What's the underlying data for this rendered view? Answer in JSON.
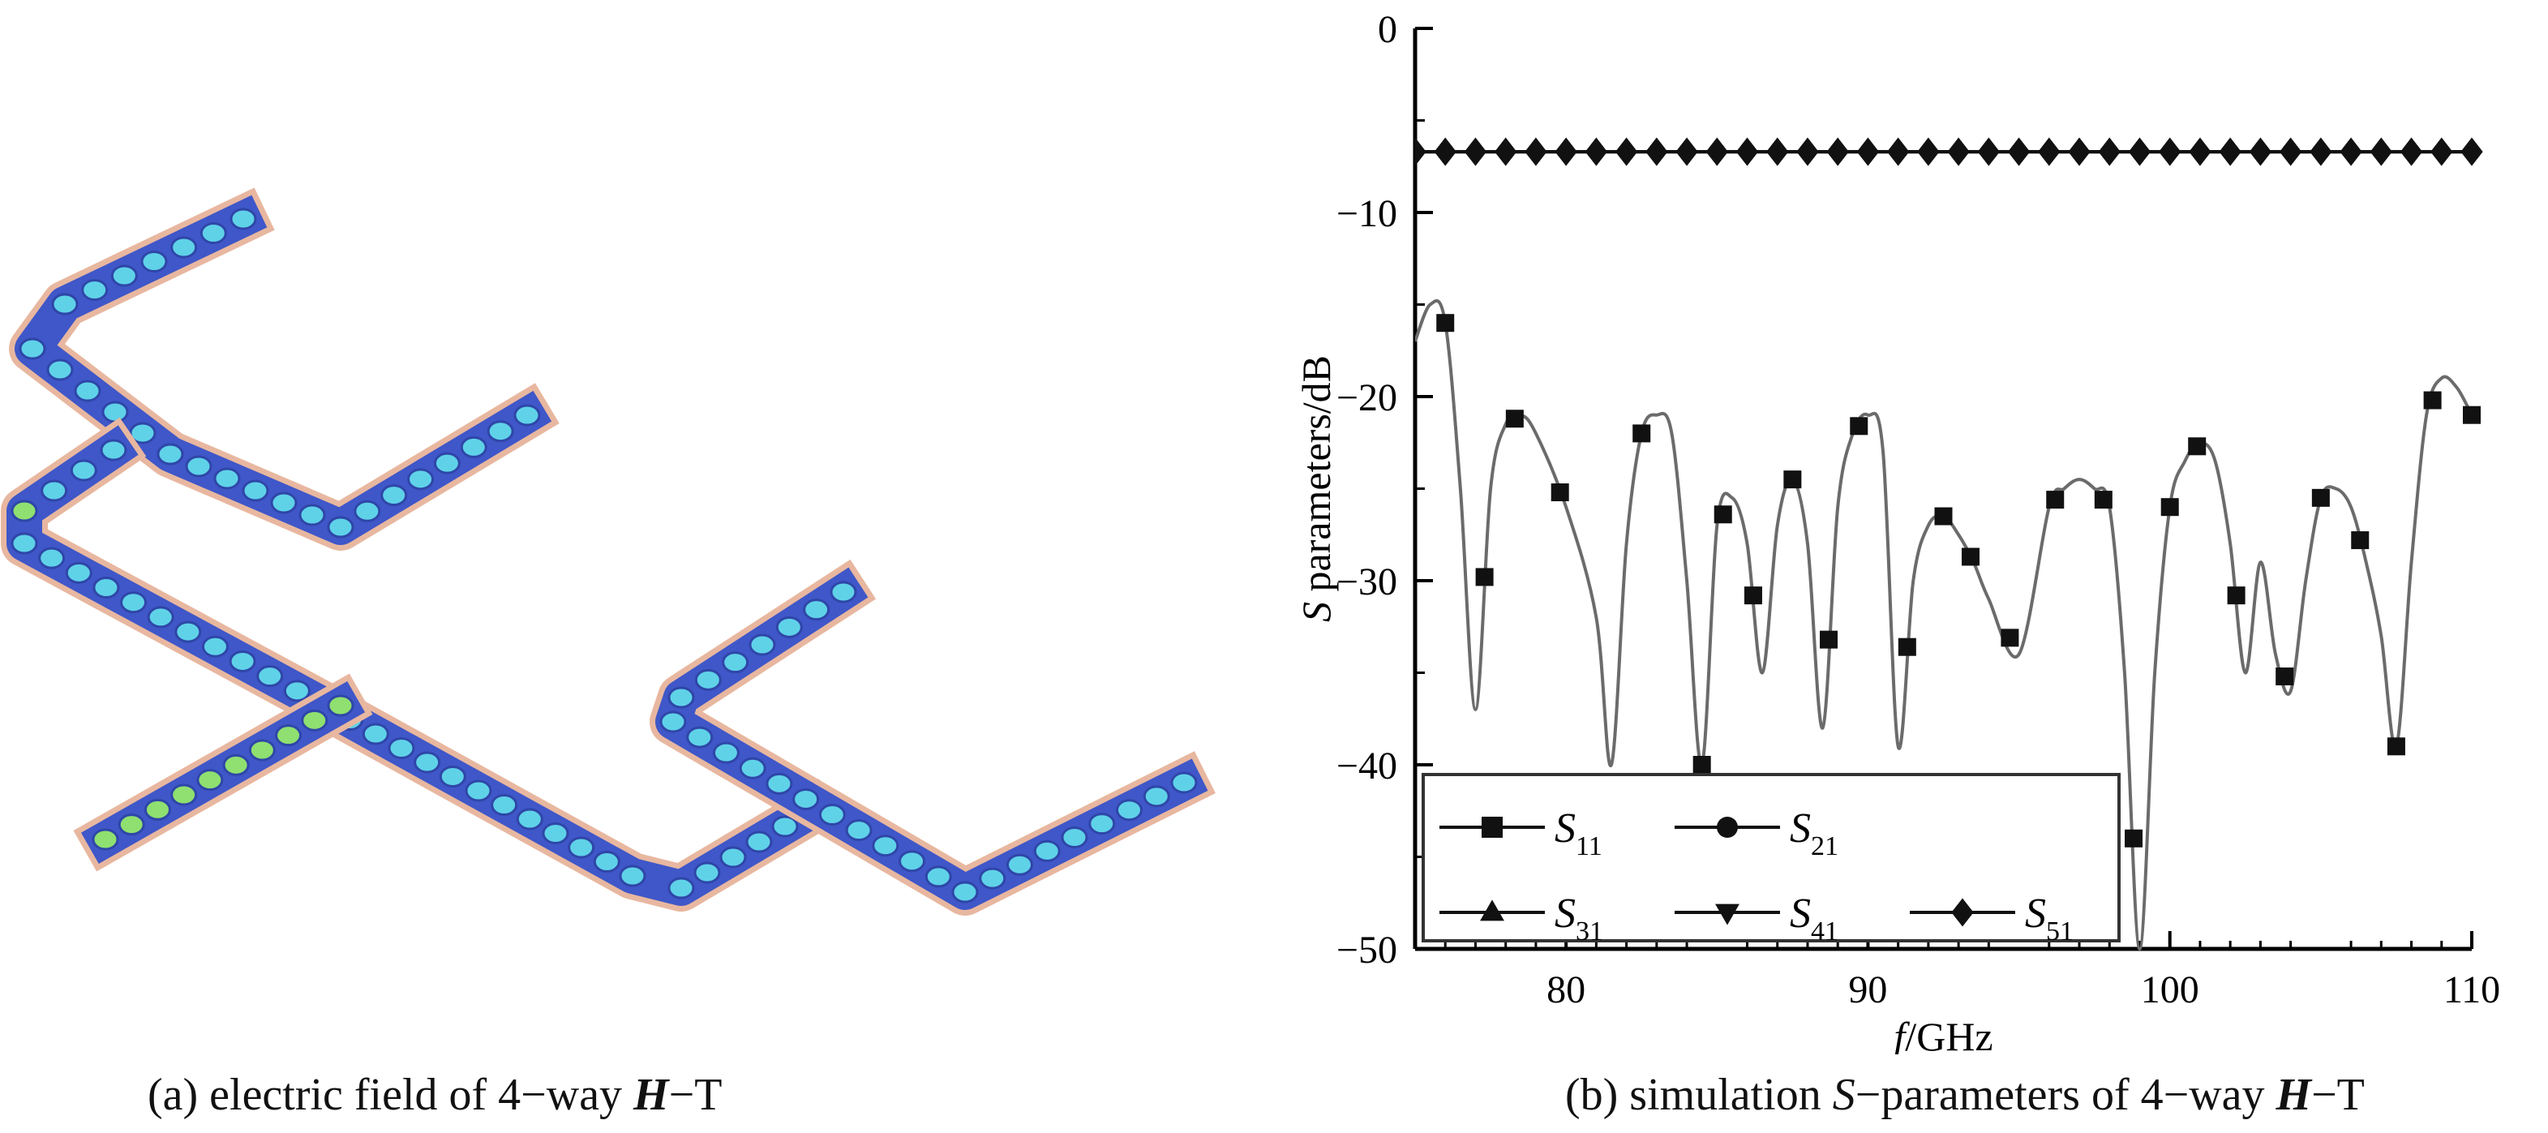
{
  "captions": {
    "a_prefix": "(a) electric field of 4−way ",
    "a_bold": "H",
    "a_suffix": "−T",
    "b_prefix": "(b) simulation ",
    "b_italic": "S",
    "b_mid": "−parameters of 4−way ",
    "b_bold": "H",
    "b_suffix": "−T"
  },
  "colors": {
    "waveguide_body": "#3f57c8",
    "waveguide_edge": "#e8b7a0",
    "field_spot_low": "#5fd2e8",
    "field_spot_high": "#8fe070",
    "curve": "#6b6b6b",
    "axis": "#000000"
  },
  "chart_data": {
    "type": "line",
    "xlabel_italic": "f",
    "xlabel_rest": "/GHz",
    "ylabel_italic": "S",
    "ylabel_rest": " parameters/dB",
    "xlim": [
      75,
      110
    ],
    "ylim": [
      -50,
      0
    ],
    "xticks": [
      80,
      90,
      100,
      110
    ],
    "yticks": [
      0,
      -10,
      -20,
      -30,
      -40,
      -50
    ],
    "ytick_labels": [
      "0",
      "−10",
      "−20",
      "−30",
      "−40",
      "−50"
    ],
    "legend_placement": "bottom-left",
    "series": [
      {
        "name": "S11",
        "sym": "S",
        "sub": "11",
        "marker": "square",
        "x": [
          75,
          75.5,
          76,
          76.5,
          77,
          77.5,
          78,
          78.5,
          79,
          80,
          81,
          81.5,
          82,
          82.5,
          83,
          83.5,
          84,
          84.5,
          85,
          85.5,
          86,
          86.5,
          87,
          87.5,
          88,
          88.5,
          89,
          89.5,
          90,
          90.5,
          91,
          91.5,
          92,
          92.5,
          93,
          93.5,
          94,
          95,
          96,
          96.5,
          97,
          97.5,
          98,
          98.5,
          99,
          99.5,
          100,
          100.5,
          101,
          101.5,
          102,
          102.5,
          103,
          103.5,
          104,
          104.5,
          105,
          105.5,
          106,
          106.5,
          107,
          107.5,
          108,
          108.5,
          109,
          109.5,
          110
        ],
        "y": [
          -17,
          -15,
          -16,
          -25,
          -37,
          -25,
          -21.5,
          -21,
          -22,
          -26,
          -32,
          -40,
          -28,
          -22,
          -21,
          -22,
          -30,
          -40,
          -27,
          -25.5,
          -28,
          -35,
          -27,
          -24.5,
          -28,
          -38,
          -26,
          -22,
          -21,
          -23,
          -39,
          -30,
          -27,
          -26.5,
          -27.5,
          -29,
          -31,
          -34,
          -26,
          -25,
          -24.5,
          -25,
          -26,
          -35,
          -50,
          -35,
          -26,
          -23.5,
          -22.5,
          -23.5,
          -28,
          -35,
          -29,
          -34,
          -36,
          -30,
          -25.5,
          -25,
          -26,
          -29,
          -33,
          -39,
          -29,
          -21,
          -19,
          -19.5,
          -21
        ]
      },
      {
        "name": "S21",
        "sym": "S",
        "sub": "21",
        "marker": "circle",
        "x": [
          75,
          110
        ],
        "y": [
          -6.7,
          -6.7
        ]
      },
      {
        "name": "S31",
        "sym": "S",
        "sub": "31",
        "marker": "triangle-up",
        "x": [
          75,
          110
        ],
        "y": [
          -6.7,
          -6.7
        ]
      },
      {
        "name": "S41",
        "sym": "S",
        "sub": "41",
        "marker": "triangle-down",
        "x": [
          75,
          110
        ],
        "y": [
          -6.7,
          -6.7
        ]
      },
      {
        "name": "S51",
        "sym": "S",
        "sub": "51",
        "marker": "diamond",
        "x": [
          75,
          110
        ],
        "y": [
          -6.7,
          -6.7
        ]
      }
    ]
  }
}
